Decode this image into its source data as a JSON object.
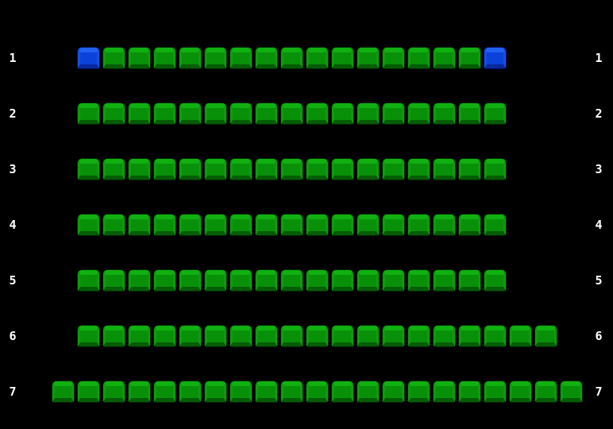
{
  "colors": {
    "background": "#000000",
    "label_text": "#ffffff",
    "seat_available": {
      "top": "#10b010",
      "side": "#0c9c0c",
      "body": "#099009",
      "bottom": "#045c04",
      "outline": "#022802"
    },
    "seat_selected": {
      "top": "#2161f2",
      "side": "#164fe6",
      "body": "#0b42da",
      "bottom": "#07299c",
      "outline": "#041060"
    }
  },
  "seat_states": {
    "available": "available",
    "selected": "selected"
  },
  "rows": [
    {
      "label": "1",
      "start_col": 1,
      "seats": [
        "selected",
        "available",
        "available",
        "available",
        "available",
        "available",
        "available",
        "available",
        "available",
        "available",
        "available",
        "available",
        "available",
        "available",
        "available",
        "available",
        "selected"
      ]
    },
    {
      "label": "2",
      "start_col": 1,
      "seats": [
        "available",
        "available",
        "available",
        "available",
        "available",
        "available",
        "available",
        "available",
        "available",
        "available",
        "available",
        "available",
        "available",
        "available",
        "available",
        "available",
        "available"
      ]
    },
    {
      "label": "3",
      "start_col": 1,
      "seats": [
        "available",
        "available",
        "available",
        "available",
        "available",
        "available",
        "available",
        "available",
        "available",
        "available",
        "available",
        "available",
        "available",
        "available",
        "available",
        "available",
        "available"
      ]
    },
    {
      "label": "4",
      "start_col": 1,
      "seats": [
        "available",
        "available",
        "available",
        "available",
        "available",
        "available",
        "available",
        "available",
        "available",
        "available",
        "available",
        "available",
        "available",
        "available",
        "available",
        "available",
        "available"
      ]
    },
    {
      "label": "5",
      "start_col": 1,
      "seats": [
        "available",
        "available",
        "available",
        "available",
        "available",
        "available",
        "available",
        "available",
        "available",
        "available",
        "available",
        "available",
        "available",
        "available",
        "available",
        "available",
        "available"
      ]
    },
    {
      "label": "6",
      "start_col": 1,
      "seats": [
        "available",
        "available",
        "available",
        "available",
        "available",
        "available",
        "available",
        "available",
        "available",
        "available",
        "available",
        "available",
        "available",
        "available",
        "available",
        "available",
        "available",
        "available",
        "available"
      ]
    },
    {
      "label": "7",
      "start_col": 0,
      "seats": [
        "available",
        "available",
        "available",
        "available",
        "available",
        "available",
        "available",
        "available",
        "available",
        "available",
        "available",
        "available",
        "available",
        "available",
        "available",
        "available",
        "available",
        "available",
        "available",
        "available",
        "available"
      ]
    }
  ]
}
